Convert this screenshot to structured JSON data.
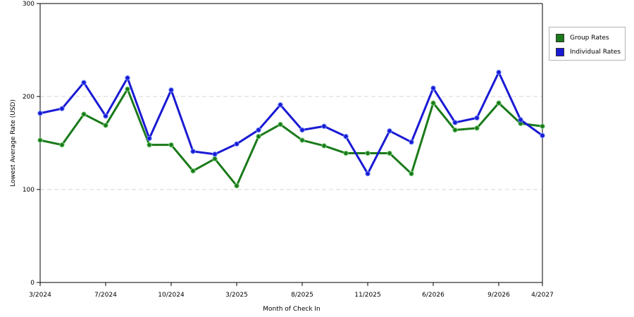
{
  "chart_data": {
    "type": "line",
    "xlabel": "Month of Check In",
    "ylabel": "Lowest Average Rate (USD)",
    "ylim": [
      0,
      300
    ],
    "yticks": [
      0,
      100,
      200,
      300
    ],
    "grid": "horizontal dashed",
    "legend_position": "right",
    "x_tick_labels": [
      "3/2024",
      "7/2024",
      "10/2024",
      "3/2025",
      "8/2025",
      "11/2025",
      "6/2026",
      "9/2026",
      "4/2027"
    ],
    "x_tick_indices": [
      0,
      3,
      6,
      9,
      12,
      15,
      18,
      21,
      23
    ],
    "point_count": 24,
    "series": [
      {
        "name": "Group Rates",
        "color": "#1a7a1a",
        "values": [
          153,
          148,
          181,
          169,
          208,
          148,
          148,
          120,
          133,
          104,
          157,
          170,
          153,
          147,
          139,
          139,
          139,
          117,
          193,
          164,
          166,
          193,
          171,
          168
        ]
      },
      {
        "name": "Individual Rates",
        "color": "#1a1ad4",
        "values": [
          182,
          187,
          215,
          179,
          220,
          155,
          207,
          141,
          138,
          149,
          164,
          191,
          164,
          168,
          157,
          117,
          163,
          151,
          209,
          172,
          177,
          226,
          175,
          158
        ]
      }
    ]
  },
  "legend": {
    "items": [
      {
        "label": "Group Rates",
        "color": "#1a7a1a"
      },
      {
        "label": "Individual Rates",
        "color": "#1a1ad4"
      }
    ]
  }
}
